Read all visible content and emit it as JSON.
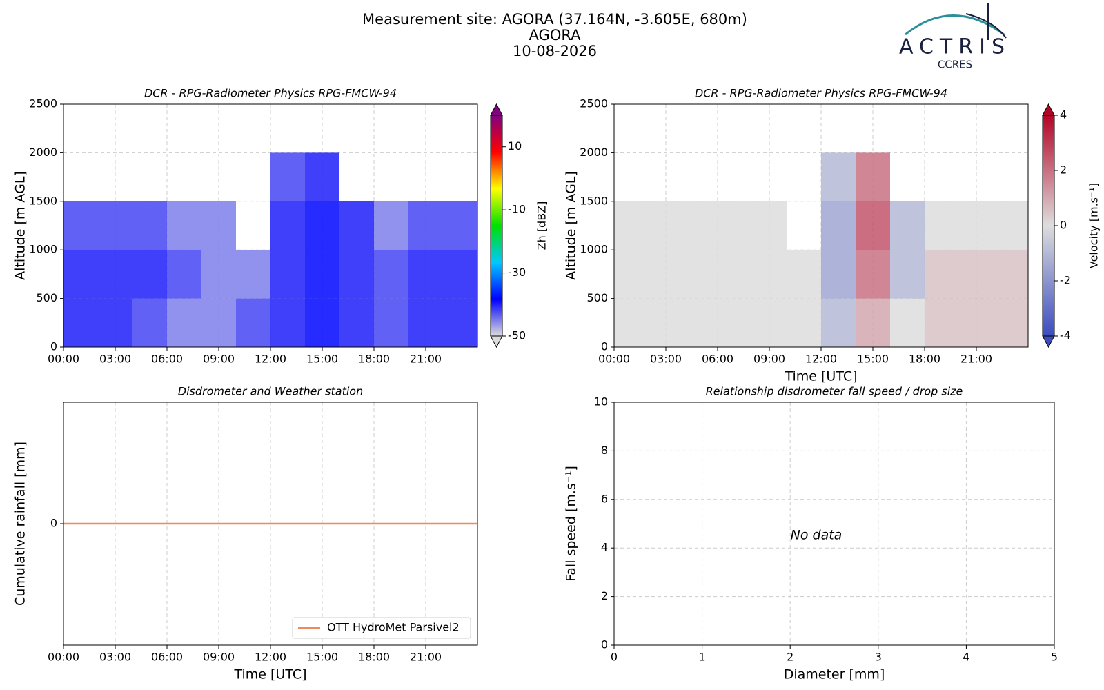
{
  "header": {
    "title_lines": [
      "Measurement site: AGORA (37.164N, -3.605E, 680m)",
      "AGORA",
      "10-08-2026"
    ],
    "logo": "ACTRIS",
    "logo_sub": "CCRES"
  },
  "chart_data": [
    {
      "type": "heatmap",
      "title": "DCR - RPG-Radiometer Physics RPG-FMCW-94",
      "y_label": "Altitude [m AGL]",
      "xlim": [
        0,
        24
      ],
      "xticks": [
        {
          "value": 0,
          "label": "00:00"
        },
        {
          "value": 3,
          "label": "03:00"
        },
        {
          "value": 6,
          "label": "06:00"
        },
        {
          "value": 9,
          "label": "09:00"
        },
        {
          "value": 12,
          "label": "12:00"
        },
        {
          "value": 15,
          "label": "15:00"
        },
        {
          "value": 18,
          "label": "18:00"
        },
        {
          "value": 21,
          "label": "21:00"
        }
      ],
      "ylim": [
        0,
        2500
      ],
      "yticks": [
        0,
        500,
        1000,
        1500,
        2000,
        2500
      ],
      "grid": true,
      "x_bins": [
        0,
        2,
        4,
        6,
        8,
        10,
        12,
        14,
        16,
        18,
        20,
        22,
        24
      ],
      "y_bins": [
        0,
        500,
        1000,
        1500,
        2000,
        2500
      ],
      "z": [
        [
          -40,
          -40,
          -42,
          -45,
          -45,
          -42,
          -40,
          -38,
          -40,
          -42,
          -40,
          -40
        ],
        [
          -40,
          -40,
          -40,
          -42,
          -45,
          -45,
          -40,
          -38,
          -40,
          -42,
          -40,
          -40
        ],
        [
          -42,
          -42,
          -42,
          -45,
          -45,
          null,
          -40,
          -38,
          -40,
          -45,
          -42,
          -42
        ],
        [
          null,
          null,
          null,
          null,
          null,
          null,
          -42,
          -40,
          null,
          null,
          null,
          null
        ],
        [
          null,
          null,
          null,
          null,
          null,
          null,
          null,
          null,
          null,
          null,
          null,
          null
        ]
      ],
      "clim": [
        -50,
        20
      ],
      "cticks": [
        -50,
        -30,
        -10,
        10
      ],
      "colorbar_label": "Zh [dBZ]",
      "colormap": [
        "#dcdcdc",
        "#0000ff",
        "#00c8ff",
        "#00e000",
        "#ffff00",
        "#ff0000",
        "#800080"
      ]
    },
    {
      "type": "heatmap",
      "title": "DCR - RPG-Radiometer Physics RPG-FMCW-94",
      "x_label": "Time [UTC]",
      "y_label": "Altitude [m AGL]",
      "xlim": [
        0,
        24
      ],
      "xticks": [
        {
          "value": 0,
          "label": "00:00"
        },
        {
          "value": 3,
          "label": "03:00"
        },
        {
          "value": 6,
          "label": "06:00"
        },
        {
          "value": 9,
          "label": "09:00"
        },
        {
          "value": 12,
          "label": "12:00"
        },
        {
          "value": 15,
          "label": "15:00"
        },
        {
          "value": 18,
          "label": "18:00"
        },
        {
          "value": 21,
          "label": "21:00"
        }
      ],
      "ylim": [
        0,
        2500
      ],
      "yticks": [
        0,
        500,
        1000,
        1500,
        2000,
        2500
      ],
      "grid": true,
      "x_bins": [
        0,
        2,
        4,
        6,
        8,
        10,
        12,
        14,
        16,
        18,
        20,
        22,
        24
      ],
      "y_bins": [
        0,
        500,
        1000,
        1500,
        2000,
        2500
      ],
      "z": [
        [
          0,
          0,
          0,
          0,
          0,
          0,
          -1,
          1,
          0,
          0.5,
          0.5,
          0.5
        ],
        [
          0,
          0,
          0,
          0,
          0,
          0,
          -1.5,
          2,
          -1,
          0.5,
          0.5,
          0.5
        ],
        [
          0,
          0,
          0,
          0,
          0,
          null,
          -1.5,
          2.5,
          -1,
          0,
          0,
          0
        ],
        [
          null,
          null,
          null,
          null,
          null,
          null,
          -1,
          2,
          null,
          null,
          null,
          null
        ],
        [
          null,
          null,
          null,
          null,
          null,
          null,
          null,
          null,
          null,
          null,
          null,
          null
        ]
      ],
      "clim": [
        -4,
        4
      ],
      "cticks": [
        -4,
        -2,
        0,
        2,
        4
      ],
      "colorbar_label": "Velocity [m.s⁻¹]",
      "colormap": [
        "#3b4cc0",
        "#dddddd",
        "#b40426"
      ]
    },
    {
      "type": "line",
      "title": "Disdrometer and Weather station",
      "x_label": "Time [UTC]",
      "y_label": "Cumulative rainfall [mm]",
      "xlim": [
        0,
        24
      ],
      "xticks": [
        {
          "value": 0,
          "label": "00:00"
        },
        {
          "value": 3,
          "label": "03:00"
        },
        {
          "value": 6,
          "label": "06:00"
        },
        {
          "value": 9,
          "label": "09:00"
        },
        {
          "value": 12,
          "label": "12:00"
        },
        {
          "value": 15,
          "label": "15:00"
        },
        {
          "value": 18,
          "label": "18:00"
        },
        {
          "value": 21,
          "label": "21:00"
        }
      ],
      "ylim": [
        -1,
        1
      ],
      "yticks": [
        0
      ],
      "grid": true,
      "legend": "lower right",
      "series": [
        {
          "name": "OTT HydroMet Parsivel2",
          "color": "#f08a5d",
          "x": [
            0,
            24
          ],
          "values": [
            0,
            0
          ]
        }
      ]
    },
    {
      "type": "scatter",
      "title": "Relationship disdrometer fall speed / drop size",
      "x_label": "Diameter [mm]",
      "y_label": "Fall speed [m.s⁻¹]",
      "xlim": [
        0,
        5
      ],
      "xticks": [
        0,
        1,
        2,
        3,
        4,
        5
      ],
      "ylim": [
        0,
        10
      ],
      "yticks": [
        0,
        2,
        4,
        6,
        8,
        10
      ],
      "grid": true,
      "annotation": "No data"
    }
  ]
}
